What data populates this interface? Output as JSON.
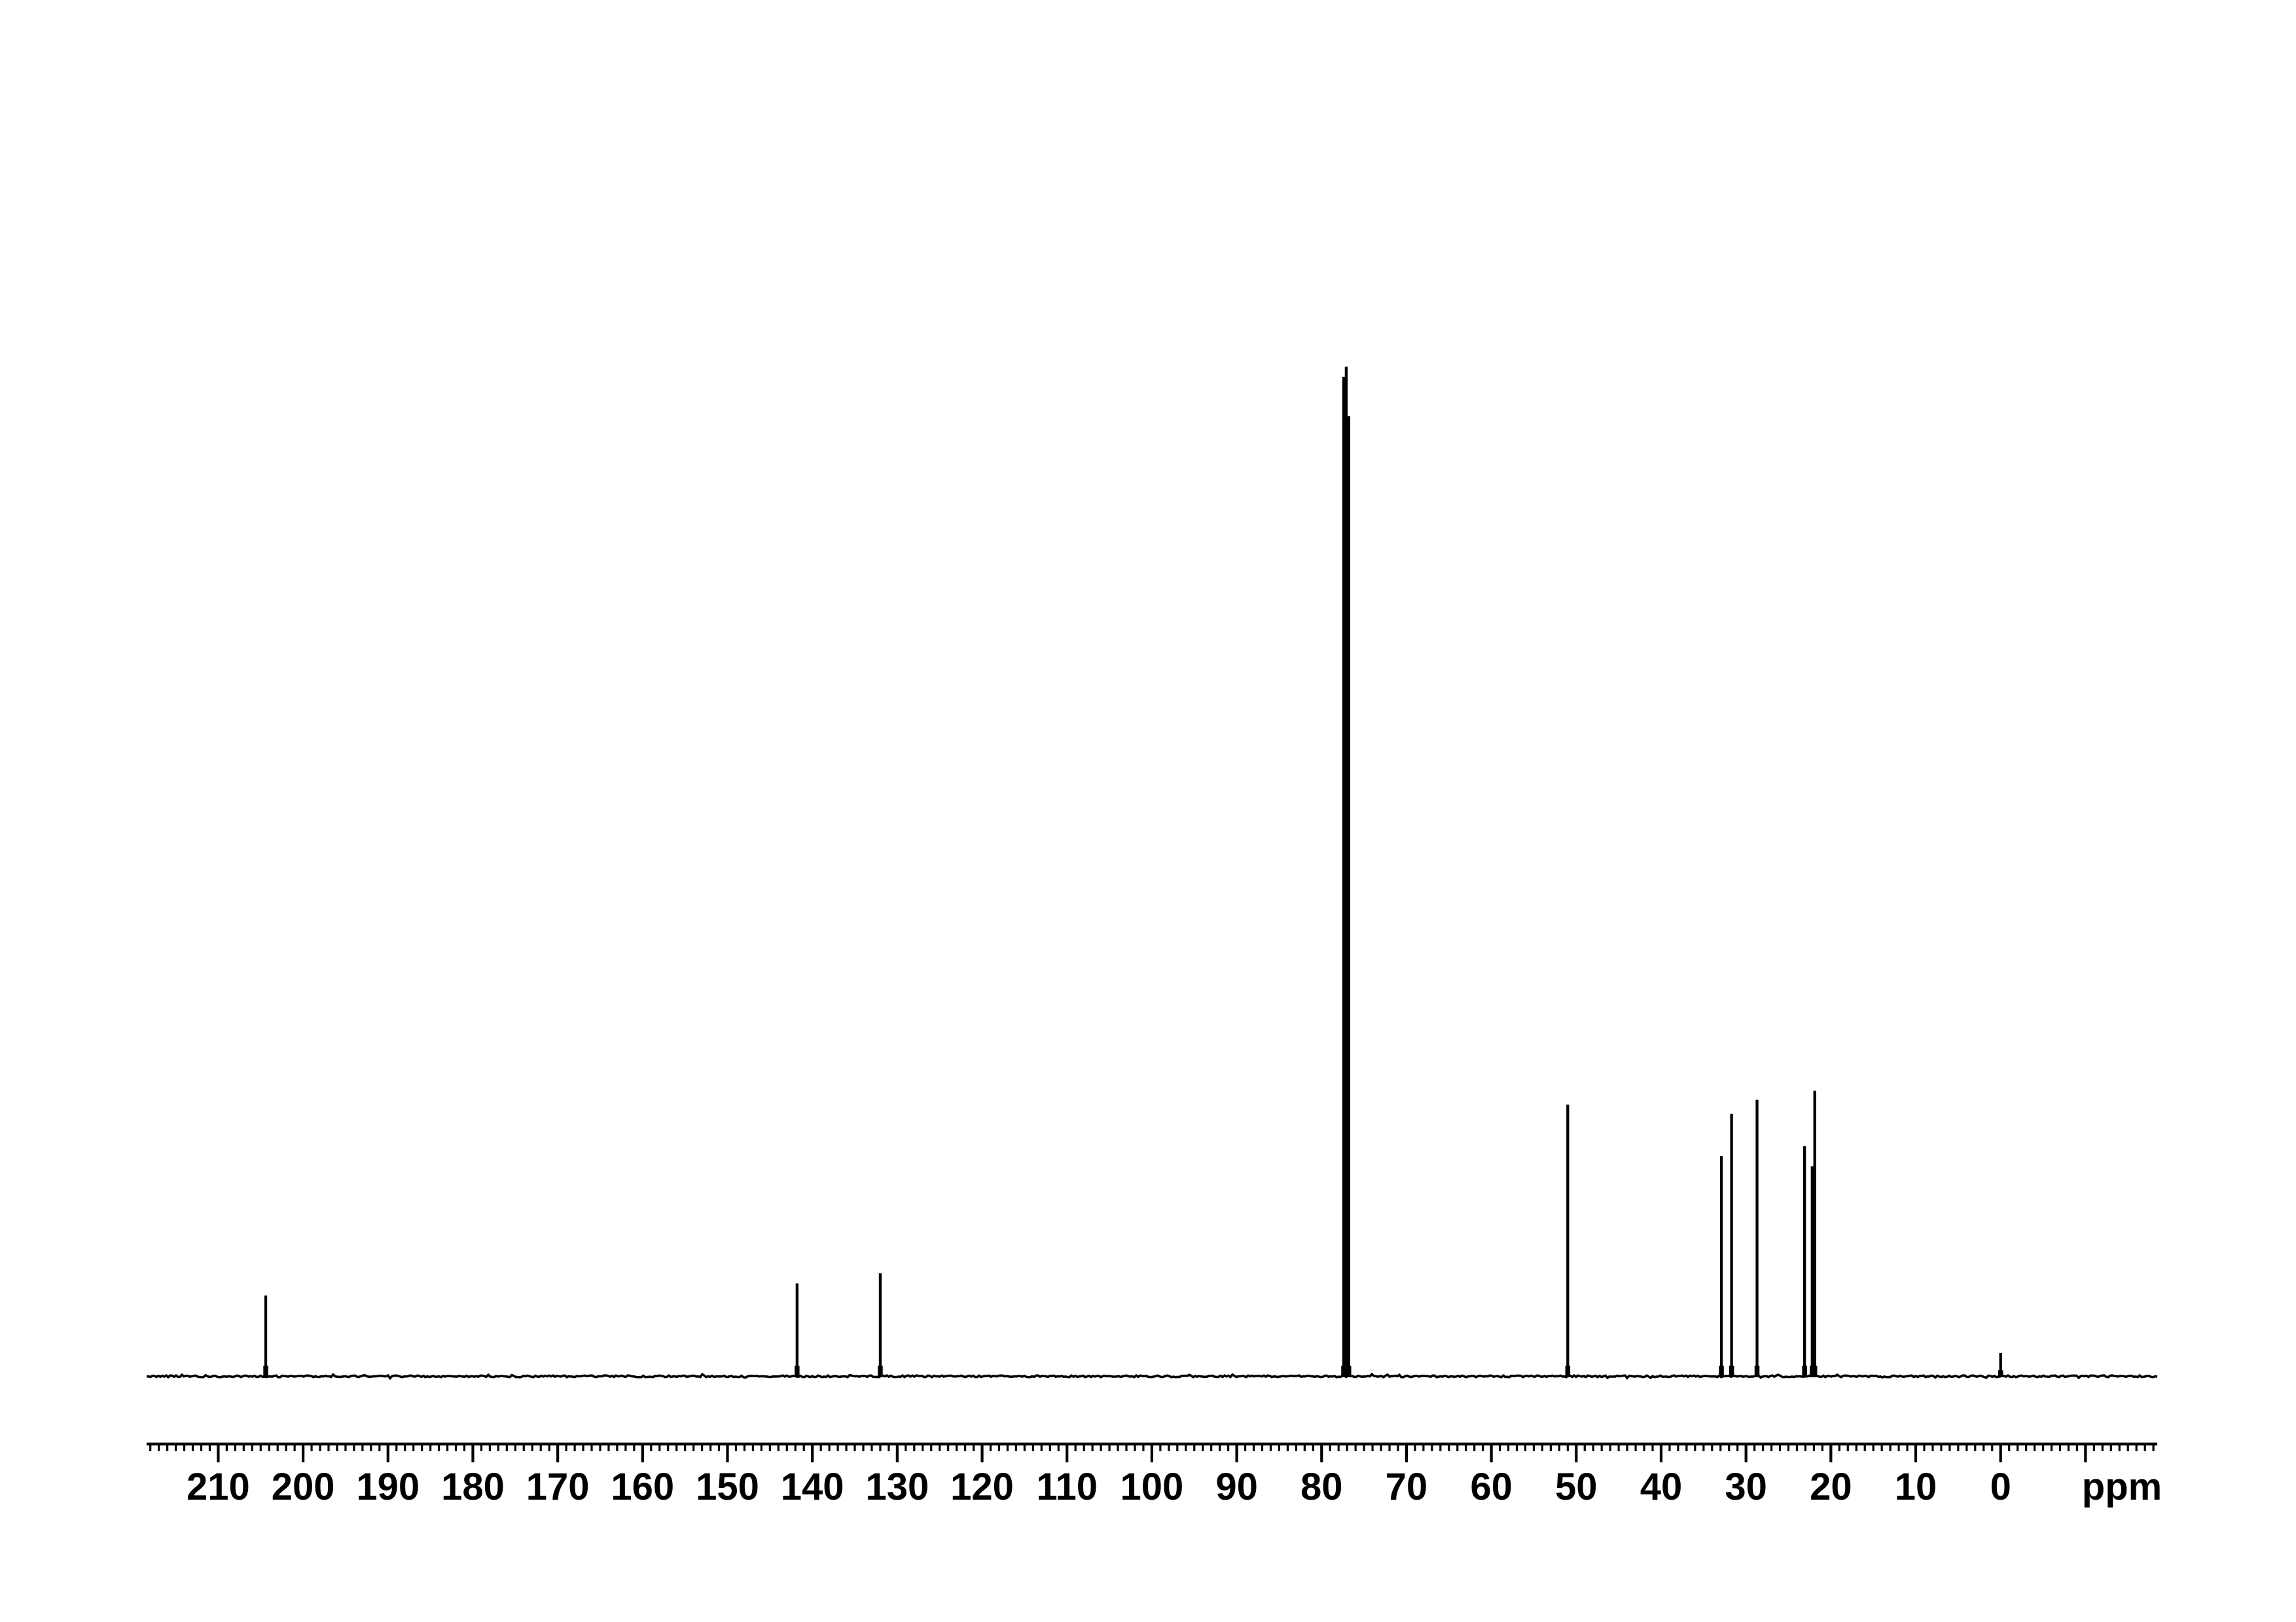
{
  "colors": {
    "ink": "#000000",
    "background": "#ffffff"
  },
  "chart_data": {
    "type": "line",
    "kind": "13C NMR spectrum trace",
    "title": "",
    "xlabel": "ppm",
    "ylabel": "",
    "grid": false,
    "x_axis": {
      "unit_label": "ppm",
      "range_ppm": [
        218.4,
        -18.4
      ],
      "direction": "values decrease to the right",
      "major_tick_interval": 10,
      "minor_tick_interval": 1,
      "label_ppm_start": 210,
      "label_ppm_step": -10,
      "tick_labels": [
        "210",
        "200",
        "190",
        "180",
        "170",
        "160",
        "150",
        "140",
        "130",
        "120",
        "110",
        "100",
        "90",
        "80",
        "70",
        "60",
        "50",
        "40",
        "30",
        "20",
        "10",
        "0"
      ]
    },
    "peaks": [
      {
        "ppm": 204.4,
        "rel_intensity": 0.08
      },
      {
        "ppm": 141.8,
        "rel_intensity": 0.092
      },
      {
        "ppm": 132.0,
        "rel_intensity": 0.102
      },
      {
        "ppm": 77.4,
        "rel_intensity": 0.99
      },
      {
        "ppm": 77.1,
        "rel_intensity": 1.0
      },
      {
        "ppm": 76.8,
        "rel_intensity": 0.951
      },
      {
        "ppm": 51.0,
        "rel_intensity": 0.269
      },
      {
        "ppm": 32.9,
        "rel_intensity": 0.218
      },
      {
        "ppm": 31.7,
        "rel_intensity": 0.26
      },
      {
        "ppm": 28.7,
        "rel_intensity": 0.274
      },
      {
        "ppm": 23.1,
        "rel_intensity": 0.228
      },
      {
        "ppm": 22.2,
        "rel_intensity": 0.208
      },
      {
        "ppm": 21.9,
        "rel_intensity": 0.283
      },
      {
        "ppm": 0.0,
        "rel_intensity": 0.023
      }
    ]
  }
}
